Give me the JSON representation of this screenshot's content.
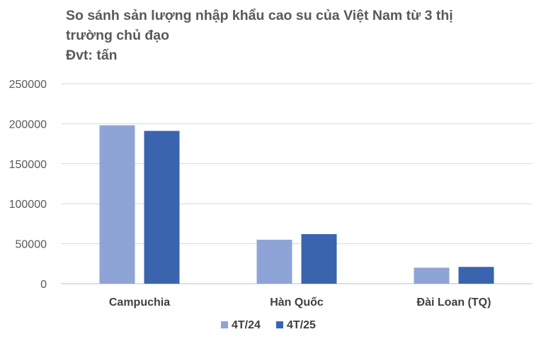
{
  "chart_data": {
    "type": "bar",
    "title_lines": [
      "So sánh sản lượng nhập khẩu cao su của Việt Nam từ 3 thị",
      "trường chủ đạo",
      "Đvt: tấn"
    ],
    "categories": [
      "Campuchia",
      "Hàn Quốc",
      "Đài Loan (TQ)"
    ],
    "series": [
      {
        "name": "4T/24",
        "color": "#8FA4D6",
        "values": [
          198000,
          55000,
          20000
        ]
      },
      {
        "name": "4T/25",
        "color": "#3B64AE",
        "values": [
          191000,
          62000,
          21000
        ]
      }
    ],
    "ylim": [
      0,
      250000
    ],
    "yticks": [
      "0",
      "50000",
      "100000",
      "150000",
      "200000",
      "250000"
    ],
    "grid": true,
    "legend_position": "bottom"
  }
}
